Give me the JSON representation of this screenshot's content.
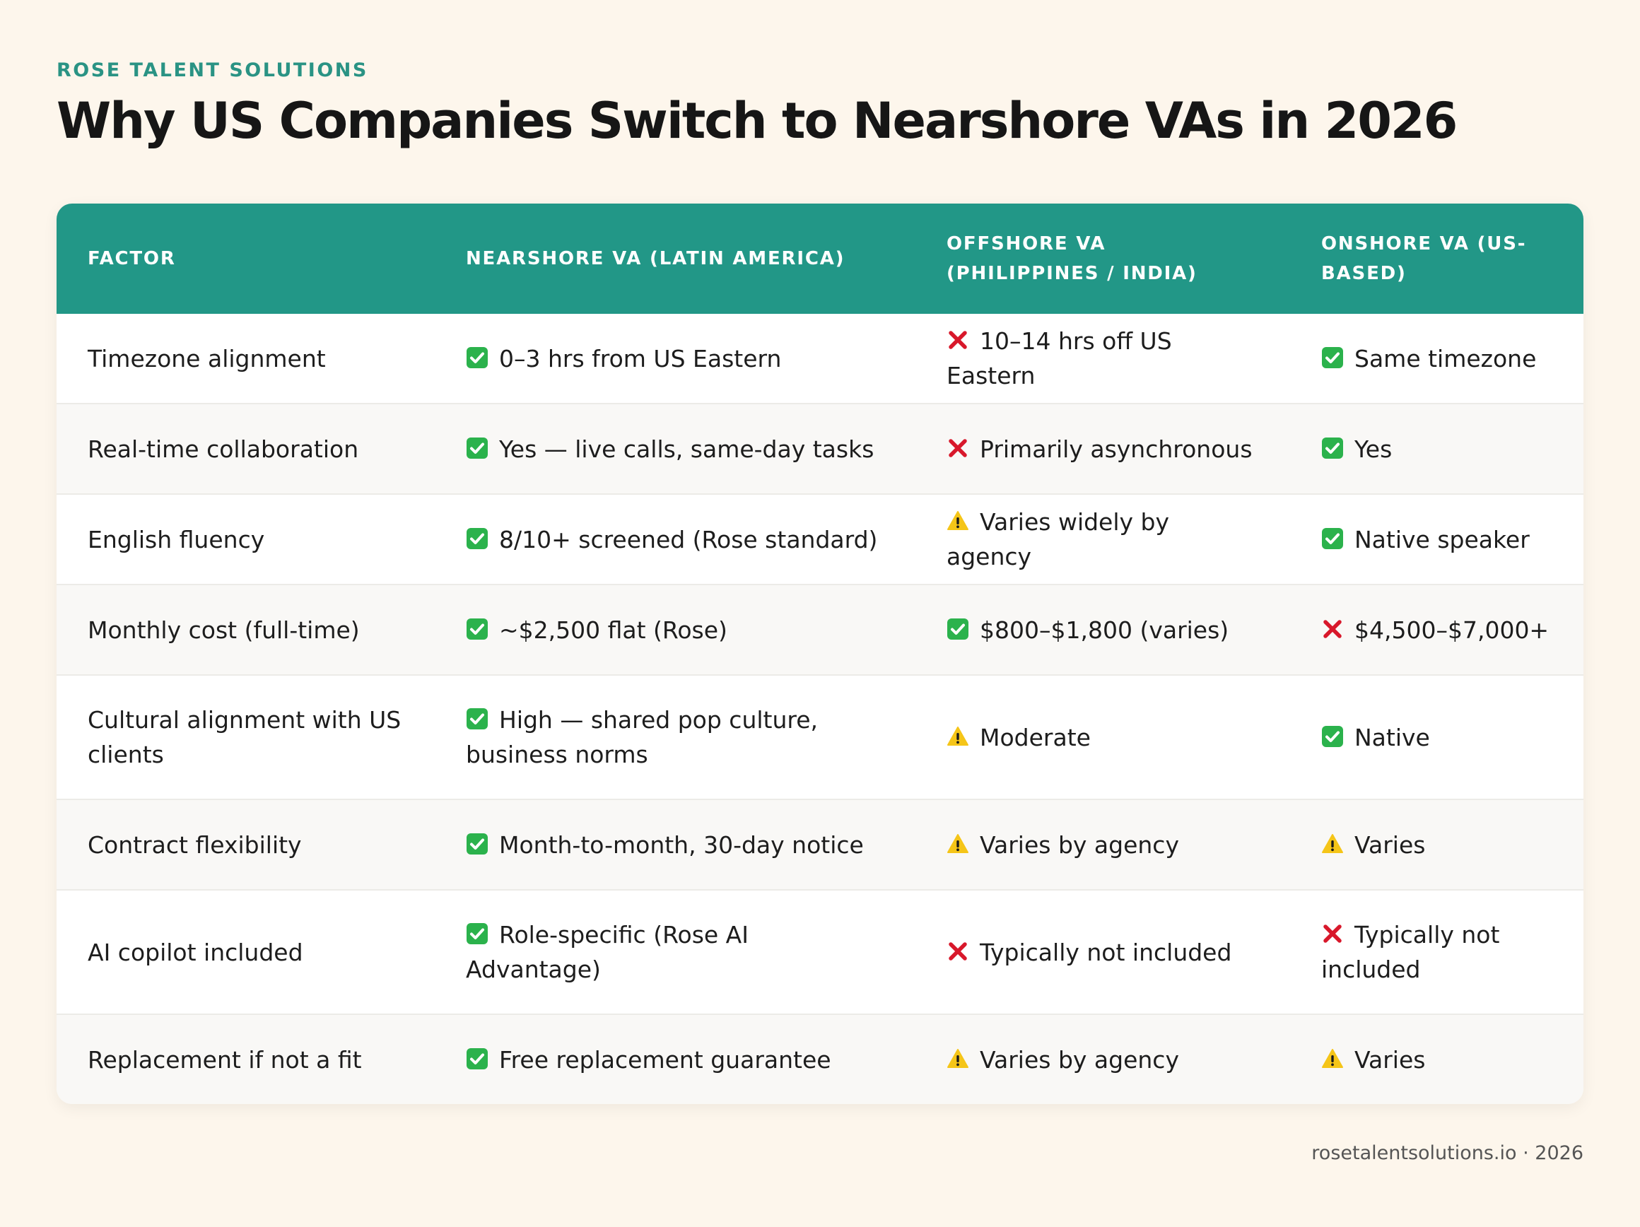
{
  "brand": "ROSE TALENT SOLUTIONS",
  "title": "Why US Companies Switch to Nearshore VAs in 2026",
  "colors": {
    "background": "#fdf6ec",
    "accent": "#229787",
    "check": "#2bb24c",
    "cross": "#d8182b",
    "warning": "#f5c518"
  },
  "table": {
    "headers": [
      "FACTOR",
      "NEARSHORE VA (LATIN AMERICA)",
      "OFFSHORE VA (PHILIPPINES / INDIA)",
      "ONSHORE VA (US-BASED)"
    ],
    "rows": [
      {
        "factor": "Timezone alignment",
        "nearshore": {
          "icon": "check-icon",
          "text": "0–3 hrs from US Eastern"
        },
        "offshore": {
          "icon": "cross-icon",
          "text": "10–14 hrs off US Eastern"
        },
        "onshore": {
          "icon": "check-icon",
          "text": "Same timezone"
        }
      },
      {
        "factor": "Real-time collaboration",
        "nearshore": {
          "icon": "check-icon",
          "text": "Yes — live calls, same-day tasks"
        },
        "offshore": {
          "icon": "cross-icon",
          "text": "Primarily asynchronous"
        },
        "onshore": {
          "icon": "check-icon",
          "text": "Yes"
        }
      },
      {
        "factor": "English fluency",
        "nearshore": {
          "icon": "check-icon",
          "text": "8/10+ screened (Rose standard)"
        },
        "offshore": {
          "icon": "warning-icon",
          "text": "Varies widely by agency"
        },
        "onshore": {
          "icon": "check-icon",
          "text": "Native speaker"
        }
      },
      {
        "factor": "Monthly cost (full-time)",
        "nearshore": {
          "icon": "check-icon",
          "text": "~$2,500 flat (Rose)"
        },
        "offshore": {
          "icon": "check-icon",
          "text": "$800–$1,800 (varies)"
        },
        "onshore": {
          "icon": "cross-icon",
          "text": "$4,500–$7,000+"
        }
      },
      {
        "factor": "Cultural alignment with US clients",
        "nearshore": {
          "icon": "check-icon",
          "text": "High — shared pop culture, business norms"
        },
        "offshore": {
          "icon": "warning-icon",
          "text": "Moderate"
        },
        "onshore": {
          "icon": "check-icon",
          "text": "Native"
        }
      },
      {
        "factor": "Contract flexibility",
        "nearshore": {
          "icon": "check-icon",
          "text": "Month-to-month, 30-day notice"
        },
        "offshore": {
          "icon": "warning-icon",
          "text": "Varies by agency"
        },
        "onshore": {
          "icon": "warning-icon",
          "text": "Varies"
        }
      },
      {
        "factor": "AI copilot included",
        "nearshore": {
          "icon": "check-icon",
          "text": "Role-specific (Rose AI Advantage)"
        },
        "offshore": {
          "icon": "cross-icon",
          "text": "Typically not included"
        },
        "onshore": {
          "icon": "cross-icon",
          "text": "Typically not included"
        }
      },
      {
        "factor": "Replacement if not a fit",
        "nearshore": {
          "icon": "check-icon",
          "text": "Free replacement guarantee"
        },
        "offshore": {
          "icon": "warning-icon",
          "text": "Varies by agency"
        },
        "onshore": {
          "icon": "warning-icon",
          "text": "Varies"
        }
      }
    ]
  },
  "footer": "rosetalentsolutions.io · 2026"
}
